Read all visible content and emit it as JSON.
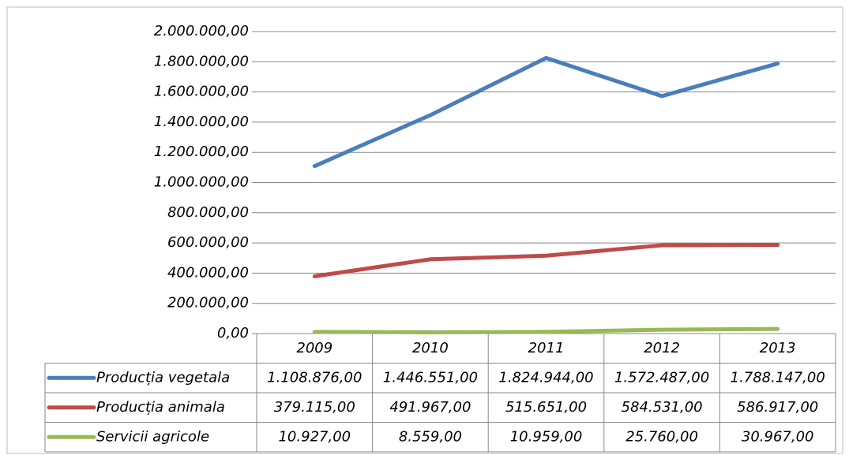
{
  "chart_data": {
    "type": "line",
    "categories": [
      "2009",
      "2010",
      "2011",
      "2012",
      "2013"
    ],
    "series": [
      {
        "name": "Producția vegetala",
        "color": "#4a7ebb",
        "values": [
          1108876,
          1446551,
          1824944,
          1572487,
          1788147
        ],
        "value_labels": [
          "1.108.876,00",
          "1.446.551,00",
          "1.824.944,00",
          "1.572.487,00",
          "1.788.147,00"
        ]
      },
      {
        "name": "Producția animala",
        "color": "#be4b48",
        "values": [
          379115,
          491967,
          515651,
          584531,
          586917
        ],
        "value_labels": [
          "379.115,00",
          "491.967,00",
          "515.651,00",
          "584.531,00",
          "586.917,00"
        ]
      },
      {
        "name": "Servicii agricole",
        "color": "#98b954",
        "values": [
          10927,
          8559,
          10959,
          25760,
          30967
        ],
        "value_labels": [
          "10.927,00",
          "8.559,00",
          "10.959,00",
          "25.760,00",
          "30.967,00"
        ]
      }
    ],
    "ylim": [
      0,
      2000000
    ],
    "yticks": [
      {
        "value": 0,
        "label": "0,00"
      },
      {
        "value": 200000,
        "label": "200.000,00"
      },
      {
        "value": 400000,
        "label": "400.000,00"
      },
      {
        "value": 600000,
        "label": "600.000,00"
      },
      {
        "value": 800000,
        "label": "800.000,00"
      },
      {
        "value": 1000000,
        "label": "1.000.000,00"
      },
      {
        "value": 1200000,
        "label": "1.200.000,00"
      },
      {
        "value": 1400000,
        "label": "1.400.000,00"
      },
      {
        "value": 1600000,
        "label": "1.600.000,00"
      },
      {
        "value": 1800000,
        "label": "1.800.000,00"
      },
      {
        "value": 2000000,
        "label": "2.000.000,00"
      }
    ],
    "grid": true
  }
}
